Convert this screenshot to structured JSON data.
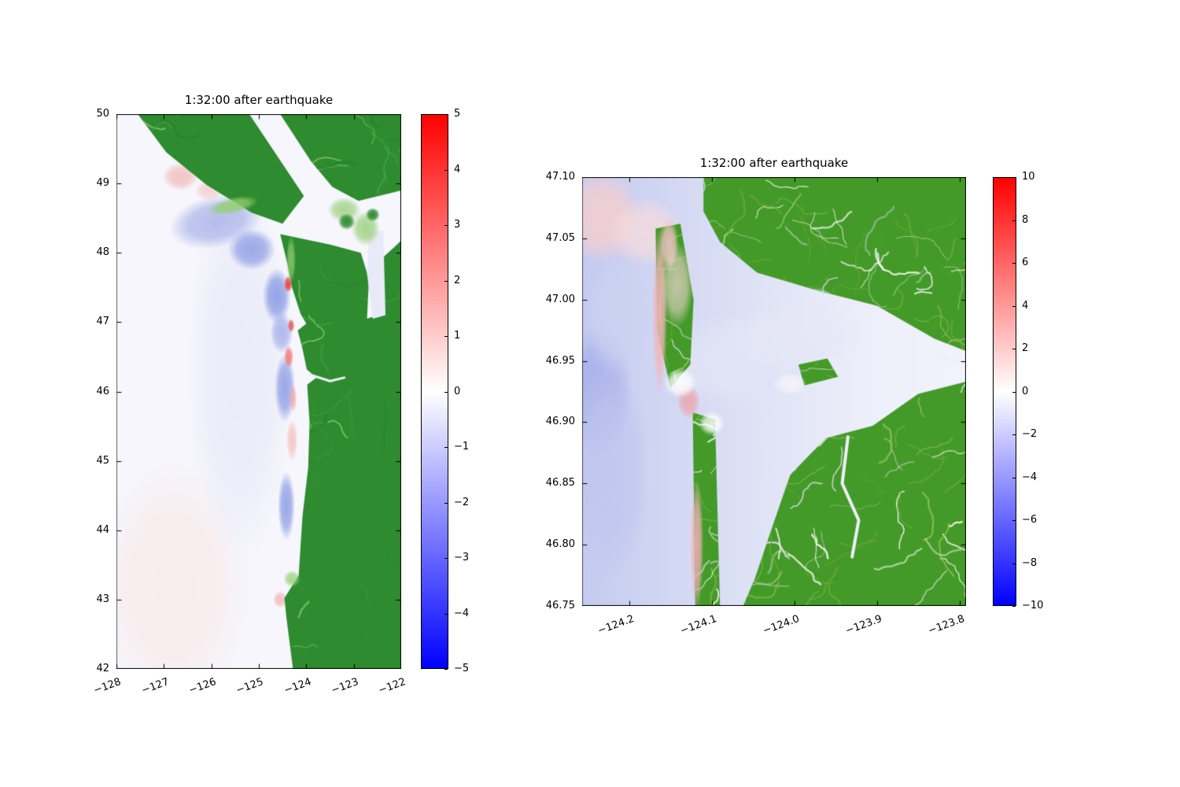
{
  "figure": {
    "background": "#ffffff"
  },
  "chart_data": [
    {
      "type": "heatmap",
      "id": "overview-coast",
      "title": "1:32:00 after earthquake",
      "xlim": [
        -128,
        -122
      ],
      "ylim": [
        42,
        50
      ],
      "xticks": [
        -128,
        -127,
        -126,
        -125,
        -124,
        -123,
        -122
      ],
      "xtick_labels": [
        "−128",
        "−127",
        "−126",
        "−125",
        "−124",
        "−123",
        "−122"
      ],
      "yticks": [
        42,
        43,
        44,
        45,
        46,
        47,
        48,
        49,
        50
      ],
      "ytick_labels": [
        "42",
        "43",
        "44",
        "45",
        "46",
        "47",
        "48",
        "49",
        "50"
      ],
      "colorbar": {
        "vmin": -5,
        "vmax": 5,
        "ticks": [
          5,
          4,
          3,
          2,
          1,
          0,
          -1,
          -2,
          -3,
          -4,
          -5
        ],
        "tick_labels": [
          "5",
          "4",
          "3",
          "2",
          "1",
          "0",
          "−1",
          "−2",
          "−3",
          "−4",
          "−5"
        ],
        "gradient": [
          "#ff0000",
          "#ffffff",
          "#0000ff"
        ],
        "cmap": "blue-white-red"
      },
      "land_color": "#2e8b30",
      "ocean_color": "#f6f6fc",
      "land_polygons": [
        [
          [
            -127.55,
            50
          ],
          [
            -125.2,
            50
          ],
          [
            -124.05,
            48.82
          ],
          [
            -124.5,
            48.42
          ],
          [
            -125.15,
            48.58
          ],
          [
            -126.1,
            48.98
          ],
          [
            -126.95,
            49.45
          ]
        ],
        [
          [
            -124.55,
            50
          ],
          [
            -122.0,
            50
          ],
          [
            -122.0,
            48.9
          ],
          [
            -122.9,
            48.75
          ],
          [
            -123.45,
            48.95
          ],
          [
            -123.9,
            49.32
          ]
        ],
        [
          [
            -124.55,
            48.27
          ],
          [
            -123.5,
            48.12
          ],
          [
            -122.85,
            48.0
          ],
          [
            -122.68,
            47.62
          ],
          [
            -122.72,
            47.05
          ],
          [
            -122.42,
            47.12
          ],
          [
            -122.36,
            47.95
          ],
          [
            -122.15,
            48.08
          ],
          [
            -122.0,
            48.18
          ],
          [
            -122.0,
            42.0
          ],
          [
            -124.28,
            42.0
          ],
          [
            -124.42,
            42.75
          ],
          [
            -124.46,
            43.02
          ],
          [
            -124.16,
            43.35
          ],
          [
            -124.08,
            44.2
          ],
          [
            -123.96,
            44.9
          ],
          [
            -123.93,
            45.55
          ],
          [
            -123.98,
            46.1
          ],
          [
            -123.79,
            46.2
          ],
          [
            -123.99,
            46.32
          ],
          [
            -124.09,
            46.65
          ],
          [
            -124.18,
            46.88
          ],
          [
            -124.0,
            46.98
          ],
          [
            -124.12,
            47.12
          ],
          [
            -124.3,
            47.5
          ],
          [
            -124.4,
            47.85
          ]
        ]
      ],
      "texture": {
        "count": 80,
        "seed": 11,
        "colors": [
          "#27802a",
          "#45a145",
          "#93cf70"
        ]
      },
      "water_patches": [
        {
          "color": "#e9eaf7",
          "pts": [
            [
              -122.68,
              48.3
            ],
            [
              -122.38,
              48.32
            ],
            [
              -122.33,
              47.1
            ],
            [
              -122.6,
              47.05
            ],
            [
              -122.72,
              47.7
            ]
          ]
        }
      ],
      "rivers": [
        {
          "width": 3,
          "color": "#eef0fa",
          "pts": [
            [
              -123.95,
              46.25
            ],
            [
              -123.5,
              46.15
            ],
            [
              -123.2,
              46.2
            ]
          ]
        }
      ],
      "features": [
        {
          "x": -126.8,
          "y": 43.2,
          "rx": 1.6,
          "ry": 1.8,
          "color": "#f9ecec",
          "alpha": 0.9
        },
        {
          "x": -125.4,
          "y": 46.3,
          "rx": 1.1,
          "ry": 2.8,
          "color": "#e9ebf8",
          "alpha": 0.9
        },
        {
          "x": -125.9,
          "y": 48.45,
          "rx": 1.0,
          "ry": 0.38,
          "color": "#a9b3e9",
          "alpha": 0.85,
          "rot": -12
        },
        {
          "x": -125.15,
          "y": 48.05,
          "rx": 0.5,
          "ry": 0.3,
          "color": "#8d9ce5",
          "alpha": 0.85
        },
        {
          "x": -126.65,
          "y": 49.1,
          "rx": 0.38,
          "ry": 0.2,
          "color": "#f3bcbc",
          "alpha": 0.85
        },
        {
          "x": -126.05,
          "y": 48.9,
          "rx": 0.3,
          "ry": 0.15,
          "color": "#f5cccc",
          "alpha": 0.8
        },
        {
          "x": -124.62,
          "y": 47.38,
          "rx": 0.3,
          "ry": 0.4,
          "color": "#8595e3",
          "alpha": 0.85
        },
        {
          "x": -124.52,
          "y": 46.85,
          "rx": 0.24,
          "ry": 0.3,
          "color": "#9fabe9",
          "alpha": 0.8
        },
        {
          "x": -124.45,
          "y": 46.05,
          "rx": 0.22,
          "ry": 0.5,
          "color": "#8a9ae5",
          "alpha": 0.85
        },
        {
          "x": -124.42,
          "y": 44.35,
          "rx": 0.18,
          "ry": 0.5,
          "color": "#8a9ae5",
          "alpha": 0.85
        },
        {
          "x": -124.3,
          "y": 45.3,
          "rx": 0.12,
          "ry": 0.3,
          "color": "#f4baba",
          "alpha": 0.75
        },
        {
          "x": -124.55,
          "y": 43.0,
          "rx": 0.15,
          "ry": 0.12,
          "color": "#f2b0b0",
          "alpha": 0.8
        },
        {
          "x": -124.38,
          "y": 47.55,
          "rx": 0.09,
          "ry": 0.12,
          "color": "#e84040",
          "alpha": 0.95,
          "layer": "top"
        },
        {
          "x": -124.32,
          "y": 46.95,
          "rx": 0.07,
          "ry": 0.1,
          "color": "#ea5050",
          "alpha": 0.9,
          "layer": "top"
        },
        {
          "x": -124.37,
          "y": 46.5,
          "rx": 0.1,
          "ry": 0.16,
          "color": "#f07878",
          "alpha": 0.9,
          "layer": "top"
        },
        {
          "x": -124.28,
          "y": 45.9,
          "rx": 0.08,
          "ry": 0.2,
          "color": "#f5a5a5",
          "alpha": 0.8,
          "layer": "top"
        },
        {
          "x": -125.55,
          "y": 48.68,
          "rx": 0.55,
          "ry": 0.12,
          "color": "#93cf70",
          "alpha": 0.9,
          "rot": -12,
          "layer": "top"
        },
        {
          "x": -124.32,
          "y": 47.9,
          "rx": 0.1,
          "ry": 0.35,
          "color": "#93cf70",
          "alpha": 0.8,
          "layer": "top"
        },
        {
          "x": -122.75,
          "y": 48.35,
          "rx": 0.3,
          "ry": 0.25,
          "color": "#9ad07a",
          "alpha": 0.85,
          "layer": "top"
        },
        {
          "x": -123.2,
          "y": 48.62,
          "rx": 0.35,
          "ry": 0.18,
          "color": "#9ad07a",
          "alpha": 0.8,
          "layer": "top"
        },
        {
          "x": -124.3,
          "y": 43.3,
          "rx": 0.18,
          "ry": 0.12,
          "color": "#93cf70",
          "alpha": 0.8,
          "layer": "top"
        },
        {
          "x": -123.15,
          "y": 48.45,
          "rx": 0.18,
          "ry": 0.12,
          "color": "#2e8b30",
          "alpha": 1,
          "layer": "top"
        },
        {
          "x": -122.6,
          "y": 48.55,
          "rx": 0.15,
          "ry": 0.1,
          "color": "#2e8b30",
          "alpha": 1,
          "layer": "top"
        }
      ]
    },
    {
      "type": "heatmap",
      "id": "zoom-grays-harbor",
      "title": "1:32:00 after earthquake",
      "xlim": [
        -124.257,
        -123.792
      ],
      "ylim": [
        46.75,
        47.1
      ],
      "xticks": [
        -124.2,
        -124.1,
        -124.0,
        -123.9,
        -123.8
      ],
      "xtick_labels": [
        "−124.2",
        "−124.1",
        "−124.0",
        "−123.9",
        "−123.8"
      ],
      "yticks": [
        46.75,
        46.8,
        46.85,
        46.9,
        46.95,
        47.0,
        47.05,
        47.1
      ],
      "ytick_labels": [
        "46.75",
        "46.80",
        "46.85",
        "46.90",
        "46.95",
        "47.00",
        "47.05",
        "47.10"
      ],
      "colorbar": {
        "vmin": -10,
        "vmax": 10,
        "ticks": [
          10,
          8,
          6,
          4,
          2,
          0,
          -2,
          -4,
          -6,
          -8,
          -10
        ],
        "tick_labels": [
          "10",
          "8",
          "6",
          "4",
          "2",
          "0",
          "−2",
          "−4",
          "−6",
          "−8",
          "−10"
        ],
        "gradient": [
          "#ff0000",
          "#ffffff",
          "#0000ff"
        ],
        "cmap": "blue-white-red"
      },
      "land_color": "#449a28",
      "ocean_color": "#f2f3fc",
      "ocean_gradient": [
        [
          0,
          "#c5cbf0"
        ],
        [
          0.4,
          "#dce0f5"
        ],
        [
          0.75,
          "#edeffa"
        ],
        [
          1,
          "#f2f3fc"
        ]
      ],
      "land_polygons": [
        [
          [
            -124.11,
            47.1
          ],
          [
            -123.792,
            47.1
          ],
          [
            -123.792,
            46.958
          ],
          [
            -123.83,
            46.968
          ],
          [
            -123.9,
            46.995
          ],
          [
            -123.97,
            47.007
          ],
          [
            -124.045,
            47.022
          ],
          [
            -124.09,
            47.047
          ],
          [
            -124.11,
            47.072
          ]
        ],
        [
          [
            -124.062,
            46.75
          ],
          [
            -123.792,
            46.75
          ],
          [
            -123.792,
            46.933
          ],
          [
            -123.85,
            46.923
          ],
          [
            -123.905,
            46.897
          ],
          [
            -123.962,
            46.887
          ],
          [
            -124.005,
            46.857
          ],
          [
            -124.028,
            46.812
          ],
          [
            -124.048,
            46.772
          ]
        ],
        [
          [
            -124.168,
            47.058
          ],
          [
            -124.138,
            47.062
          ],
          [
            -124.122,
            47.0
          ],
          [
            -124.126,
            46.947
          ],
          [
            -124.15,
            46.928
          ],
          [
            -124.166,
            46.975
          ]
        ],
        [
          [
            -124.123,
            46.908
          ],
          [
            -124.096,
            46.902
          ],
          [
            -124.09,
            46.75
          ],
          [
            -124.12,
            46.75
          ]
        ],
        [
          [
            -123.995,
            46.947
          ],
          [
            -123.96,
            46.952
          ],
          [
            -123.947,
            46.937
          ],
          [
            -123.988,
            46.93
          ]
        ]
      ],
      "texture": {
        "count": 230,
        "seed": 7,
        "colors": [
          "#8fc452",
          "#ffffff",
          "#dfe2f4",
          "#6cab36",
          "#ffffff"
        ]
      },
      "water_patches": [],
      "rivers": [
        {
          "width": 4,
          "color": "#eef0fa",
          "pts": [
            [
              -123.935,
              46.888
            ],
            [
              -123.942,
              46.85
            ],
            [
              -123.922,
              46.82
            ],
            [
              -123.93,
              46.79
            ]
          ]
        },
        {
          "width": 5,
          "color": "#eef0fa",
          "pts": [
            [
              -123.83,
              46.955
            ],
            [
              -123.792,
              46.948
            ]
          ]
        }
      ],
      "features": [
        {
          "x": -124.238,
          "y": 46.925,
          "rx": 0.042,
          "ry": 0.055,
          "color": "#a6afe9",
          "alpha": 0.9
        },
        {
          "x": -124.225,
          "y": 46.86,
          "rx": 0.05,
          "ry": 0.09,
          "color": "#c0c6ef",
          "alpha": 0.85
        },
        {
          "x": -124.215,
          "y": 46.985,
          "rx": 0.04,
          "ry": 0.05,
          "color": "#ccd2f2",
          "alpha": 0.8
        },
        {
          "x": -124.235,
          "y": 47.068,
          "rx": 0.05,
          "ry": 0.038,
          "color": "#f5cfcf",
          "alpha": 0.9
        },
        {
          "x": -124.18,
          "y": 47.055,
          "rx": 0.045,
          "ry": 0.028,
          "color": "#f8dcdc",
          "alpha": 0.8
        },
        {
          "x": -124.07,
          "y": 46.95,
          "rx": 0.1,
          "ry": 0.04,
          "color": "#e2e5f6",
          "alpha": 0.9
        },
        {
          "x": -124.0,
          "y": 46.97,
          "rx": 0.08,
          "ry": 0.03,
          "color": "#e6e8f7",
          "alpha": 0.8
        },
        {
          "x": -124.163,
          "y": 46.99,
          "rx": 0.009,
          "ry": 0.07,
          "color": "#f1b4b8",
          "alpha": 0.95,
          "layer": "top"
        },
        {
          "x": -124.152,
          "y": 47.045,
          "rx": 0.012,
          "ry": 0.022,
          "color": "#f4c4c8",
          "alpha": 0.9,
          "layer": "top"
        },
        {
          "x": -124.118,
          "y": 46.8,
          "rx": 0.008,
          "ry": 0.055,
          "color": "#efb0b6",
          "alpha": 0.9,
          "layer": "top"
        },
        {
          "x": -124.128,
          "y": 46.917,
          "rx": 0.014,
          "ry": 0.014,
          "color": "#eda4ac",
          "alpha": 0.85,
          "layer": "top"
        },
        {
          "x": -124.142,
          "y": 47.012,
          "rx": 0.02,
          "ry": 0.035,
          "color": "#f6d8d8",
          "alpha": 0.7,
          "layer": "top"
        },
        {
          "x": -124.138,
          "y": 46.932,
          "rx": 0.02,
          "ry": 0.012,
          "color": "#ffffff",
          "alpha": 0.9,
          "layer": "top"
        },
        {
          "x": -124.1,
          "y": 46.899,
          "rx": 0.016,
          "ry": 0.01,
          "color": "#ffffff",
          "alpha": 0.85,
          "layer": "top"
        },
        {
          "x": -124.005,
          "y": 46.931,
          "rx": 0.02,
          "ry": 0.009,
          "color": "#f4f5fb",
          "alpha": 0.9,
          "layer": "top"
        }
      ]
    }
  ]
}
